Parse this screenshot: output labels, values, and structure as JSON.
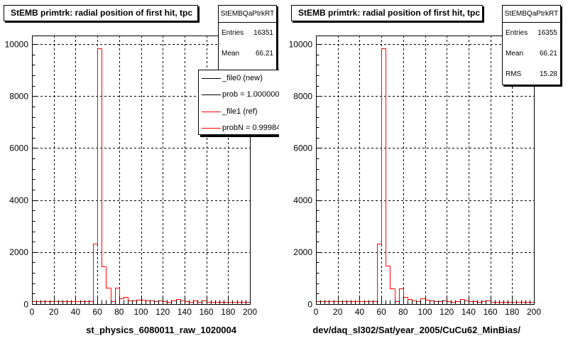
{
  "chart_data": [
    {
      "type": "bar",
      "title": "StEMB primtrk: radial position of first hit, tpc",
      "xlabel": "st_physics_6080011_raw_1020004",
      "xlim": [
        0,
        200
      ],
      "ylim": [
        0,
        10330
      ],
      "x_ticks": [
        0,
        20,
        40,
        60,
        80,
        100,
        120,
        140,
        160,
        180,
        200
      ],
      "y_ticks": [
        0,
        2000,
        4000,
        6000,
        8000,
        10000
      ],
      "grid": true,
      "bin_width": 4,
      "stats": {
        "name": "StEMBQaPtrkRT",
        "rows": [
          {
            "label": "Entries",
            "value": 16351
          },
          {
            "label": "Mean",
            "value": 66.21
          }
        ]
      },
      "legend": {
        "placement": "top-right",
        "prob_new": "prob = 1.000000",
        "prob_ref": "probN = 0.99984"
      },
      "series": [
        {
          "name": "_file0 (new)",
          "color": "#000000",
          "values": [
            100,
            100,
            100,
            100,
            100,
            100,
            100,
            100,
            100,
            100,
            100,
            100,
            100,
            100,
            2330,
            9830,
            1460,
            620,
            120,
            620,
            230,
            280,
            150,
            130,
            170,
            160,
            140,
            130,
            100,
            130,
            110,
            90,
            130,
            190,
            130,
            120,
            90,
            130,
            80,
            150,
            80,
            80,
            90,
            80,
            90,
            80,
            90,
            90,
            80,
            90
          ]
        },
        {
          "name": "_file1 (ref)",
          "color": "#ff0000",
          "values": [
            100,
            100,
            100,
            100,
            100,
            100,
            100,
            100,
            100,
            100,
            100,
            100,
            100,
            100,
            2330,
            9830,
            1460,
            620,
            120,
            620,
            230,
            280,
            150,
            130,
            170,
            160,
            140,
            130,
            100,
            130,
            110,
            90,
            130,
            190,
            130,
            120,
            90,
            130,
            80,
            150,
            80,
            80,
            90,
            80,
            90,
            80,
            90,
            90,
            80,
            90
          ]
        }
      ]
    },
    {
      "type": "bar",
      "title": "StEMB primtrk: radial position of first hit, tpc",
      "xlabel": "dev/daq_sl302/Sat/year_2005/CuCu62_MinBias/",
      "xlim": [
        0,
        200
      ],
      "ylim": [
        0,
        10330
      ],
      "x_ticks": [
        0,
        20,
        40,
        60,
        80,
        100,
        120,
        140,
        160,
        180,
        200
      ],
      "y_ticks": [
        0,
        2000,
        4000,
        6000,
        8000,
        10000
      ],
      "grid": true,
      "bin_width": 4,
      "stats": {
        "name": "StEMBQaPtrkRT",
        "rows": [
          {
            "label": "Entries",
            "value": 16355
          },
          {
            "label": "Mean",
            "value": 66.21
          },
          {
            "label": "RMS",
            "value": 15.28
          }
        ]
      },
      "series": [
        {
          "color": "#ff0000",
          "values": [
            100,
            100,
            100,
            100,
            100,
            100,
            100,
            100,
            100,
            100,
            100,
            100,
            100,
            100,
            2330,
            9830,
            1470,
            600,
            110,
            610,
            260,
            200,
            140,
            120,
            230,
            170,
            140,
            120,
            110,
            140,
            100,
            90,
            120,
            180,
            150,
            100,
            120,
            90,
            110,
            140,
            80,
            90,
            80,
            90,
            90,
            80,
            90,
            90,
            80,
            90
          ]
        }
      ]
    }
  ]
}
